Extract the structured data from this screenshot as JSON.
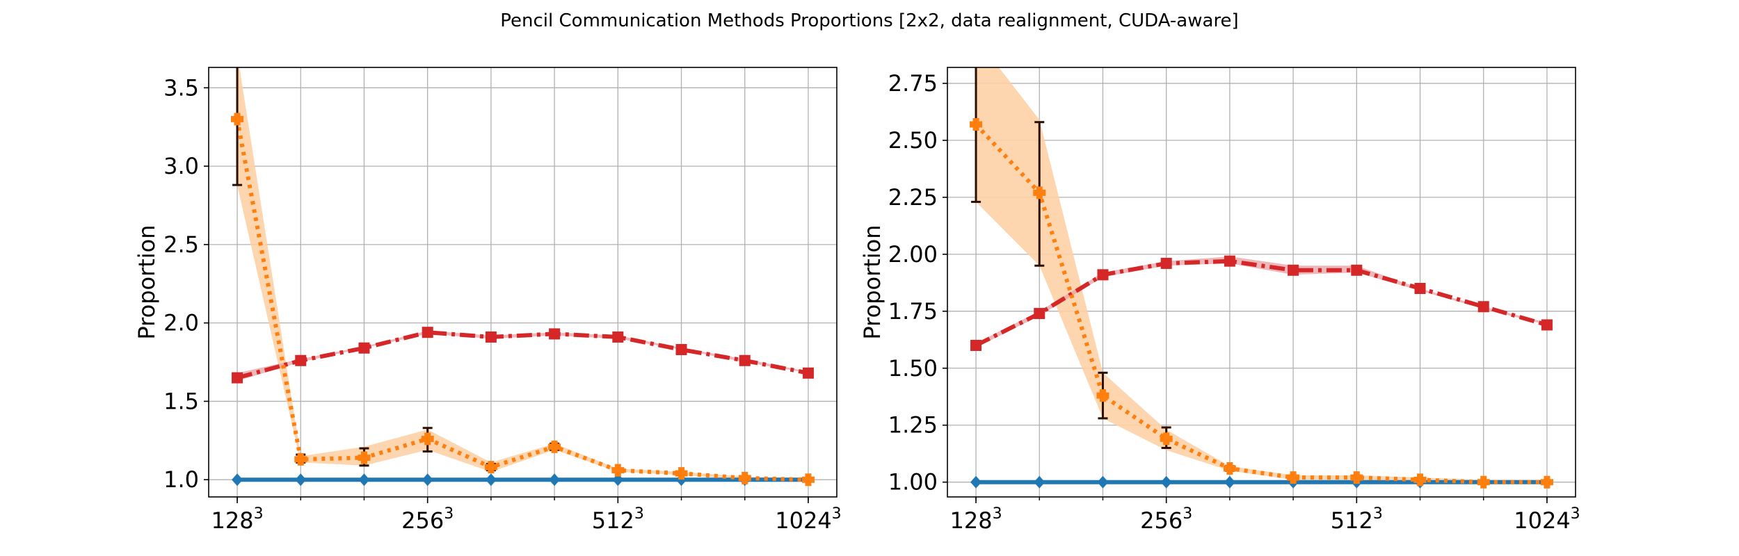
{
  "figure": {
    "title": "Pencil Communication Methods Proportions [2x2, data realignment, CUDA-aware]"
  },
  "colors": {
    "blue": "#1f77b4",
    "orange": "#ff7f0e",
    "red": "#d62728",
    "band_orange": "#fdd0a5",
    "band_red": "#e8a0a4",
    "error_bar": "#2b0f00",
    "grid": "#b0b0b0"
  },
  "chart_data": [
    {
      "type": "line",
      "title": "",
      "xlabel": "",
      "ylabel": "Proportion",
      "grid": true,
      "x": [
        0,
        1,
        2,
        3,
        4,
        5,
        6,
        7,
        8,
        9
      ],
      "xticks": [
        {
          "at": 0,
          "base": "128",
          "exp": "3"
        },
        {
          "at": 3,
          "base": "256",
          "exp": "3"
        },
        {
          "at": 6,
          "base": "512",
          "exp": "3"
        },
        {
          "at": 9,
          "base": "1024",
          "exp": "3"
        }
      ],
      "ylim": [
        0.89,
        3.63
      ],
      "yticks": [
        "1.0",
        "1.5",
        "2.0",
        "2.5",
        "3.0",
        "3.5"
      ],
      "ytick_values": [
        1.0,
        1.5,
        2.0,
        2.5,
        3.0,
        3.5
      ],
      "series": [
        {
          "color_key": "blue",
          "style": "solid",
          "marker": "diamond",
          "values": [
            1,
            1,
            1,
            1,
            1,
            1,
            1,
            1,
            1,
            1
          ]
        },
        {
          "color_key": "orange",
          "style": "dotted",
          "marker": "plus",
          "values": [
            3.3,
            1.13,
            1.14,
            1.26,
            1.08,
            1.21,
            1.06,
            1.04,
            1.01,
            1.0
          ],
          "band_low": [
            2.88,
            1.11,
            1.09,
            1.19,
            1.05,
            1.19,
            1.05,
            1.03,
            1.0,
            1.0
          ],
          "band_high": [
            3.72,
            1.15,
            1.21,
            1.32,
            1.11,
            1.23,
            1.07,
            1.05,
            1.02,
            1.01
          ],
          "err_low": [
            2.88,
            1.11,
            1.09,
            1.18,
            1.06,
            1.19,
            null,
            null,
            null,
            null
          ],
          "err_high": [
            3.72,
            1.16,
            1.2,
            1.33,
            1.1,
            1.23,
            null,
            null,
            null,
            null
          ]
        },
        {
          "color_key": "red",
          "style": "dashdot",
          "marker": "square",
          "values": [
            1.65,
            1.76,
            1.84,
            1.94,
            1.91,
            1.93,
            1.91,
            1.83,
            1.76,
            1.68
          ],
          "band_low": [
            1.63,
            1.75,
            1.84,
            1.93,
            1.9,
            1.92,
            1.9,
            1.83,
            1.75,
            1.68
          ],
          "band_high": [
            1.68,
            1.77,
            1.85,
            1.95,
            1.92,
            1.94,
            1.92,
            1.84,
            1.77,
            1.69
          ]
        }
      ]
    },
    {
      "type": "line",
      "title": "",
      "xlabel": "",
      "ylabel": "Proportion",
      "grid": true,
      "x": [
        0,
        1,
        2,
        3,
        4,
        5,
        6,
        7,
        8,
        9
      ],
      "xticks": [
        {
          "at": 0,
          "base": "128",
          "exp": "3"
        },
        {
          "at": 3,
          "base": "256",
          "exp": "3"
        },
        {
          "at": 6,
          "base": "512",
          "exp": "3"
        },
        {
          "at": 9,
          "base": "1024",
          "exp": "3"
        }
      ],
      "ylim": [
        0.935,
        2.82
      ],
      "yticks": [
        "1.00",
        "1.25",
        "1.50",
        "1.75",
        "2.00",
        "2.25",
        "2.50",
        "2.75"
      ],
      "ytick_values": [
        1.0,
        1.25,
        1.5,
        1.75,
        2.0,
        2.25,
        2.5,
        2.75
      ],
      "series": [
        {
          "color_key": "blue",
          "style": "solid",
          "marker": "diamond",
          "values": [
            1,
            1,
            1,
            1,
            1,
            1,
            1,
            1,
            1,
            1
          ]
        },
        {
          "color_key": "orange",
          "style": "dotted",
          "marker": "plus",
          "values": [
            2.57,
            2.27,
            1.38,
            1.19,
            1.06,
            1.02,
            1.02,
            1.01,
            1.0,
            1.0
          ],
          "band_low": [
            2.23,
            1.95,
            1.28,
            1.14,
            1.05,
            1.01,
            1.01,
            1.0,
            1.0,
            1.0
          ],
          "band_high": [
            2.95,
            2.59,
            1.48,
            1.23,
            1.07,
            1.03,
            1.03,
            1.02,
            1.01,
            1.01
          ],
          "err_low": [
            2.23,
            1.95,
            1.28,
            1.15,
            1.05,
            null,
            null,
            null,
            null,
            null
          ],
          "err_high": [
            2.91,
            2.58,
            1.48,
            1.24,
            1.07,
            null,
            null,
            null,
            null,
            null
          ]
        },
        {
          "color_key": "red",
          "style": "dashdot",
          "marker": "square",
          "values": [
            1.6,
            1.74,
            1.91,
            1.96,
            1.97,
            1.93,
            1.93,
            1.85,
            1.77,
            1.69
          ],
          "band_low": [
            1.59,
            1.73,
            1.9,
            1.95,
            1.96,
            1.91,
            1.92,
            1.84,
            1.76,
            1.69
          ],
          "band_high": [
            1.61,
            1.75,
            1.92,
            1.97,
            1.99,
            1.95,
            1.95,
            1.85,
            1.77,
            1.7
          ],
          "err_low": [
            null,
            null,
            null,
            null,
            null,
            null,
            null,
            null,
            null,
            null
          ],
          "err_high": [
            null,
            null,
            null,
            null,
            null,
            null,
            null,
            null,
            null,
            null
          ]
        }
      ]
    }
  ]
}
